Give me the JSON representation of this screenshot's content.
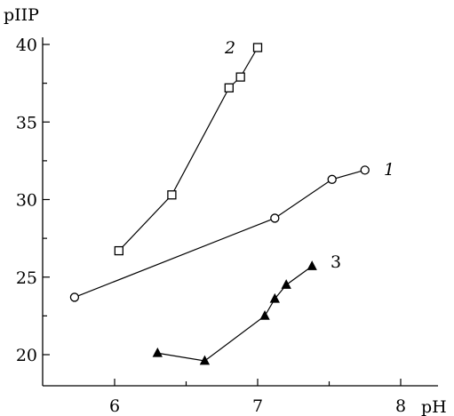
{
  "chart_data": {
    "type": "scatter",
    "xlabel": "pH",
    "ylabel": "pIIP",
    "xlim": [
      5.5,
      8.3
    ],
    "ylim": [
      18,
      40.4
    ],
    "x_ticks": [
      6,
      7,
      8
    ],
    "y_ticks": [
      20,
      25,
      30,
      35,
      40
    ],
    "grid": false,
    "legend": "none",
    "series": [
      {
        "label": "1",
        "label_style": "italic",
        "marker": "circle-open",
        "points": [
          [
            5.72,
            23.7
          ],
          [
            7.12,
            28.8
          ],
          [
            7.52,
            31.3
          ],
          [
            7.75,
            31.9
          ]
        ]
      },
      {
        "label": "2",
        "label_style": "italic",
        "marker": "square-open",
        "points": [
          [
            6.03,
            26.7
          ],
          [
            6.4,
            30.3
          ],
          [
            6.8,
            37.2
          ],
          [
            6.88,
            37.9
          ],
          [
            7.0,
            39.8
          ]
        ]
      },
      {
        "label": "3",
        "label_style": "normal",
        "marker": "triangle-filled",
        "points": [
          [
            6.3,
            20.1
          ],
          [
            6.63,
            19.6
          ],
          [
            7.05,
            22.5
          ],
          [
            7.12,
            23.6
          ],
          [
            7.2,
            24.5
          ],
          [
            7.38,
            25.7
          ]
        ]
      }
    ]
  }
}
